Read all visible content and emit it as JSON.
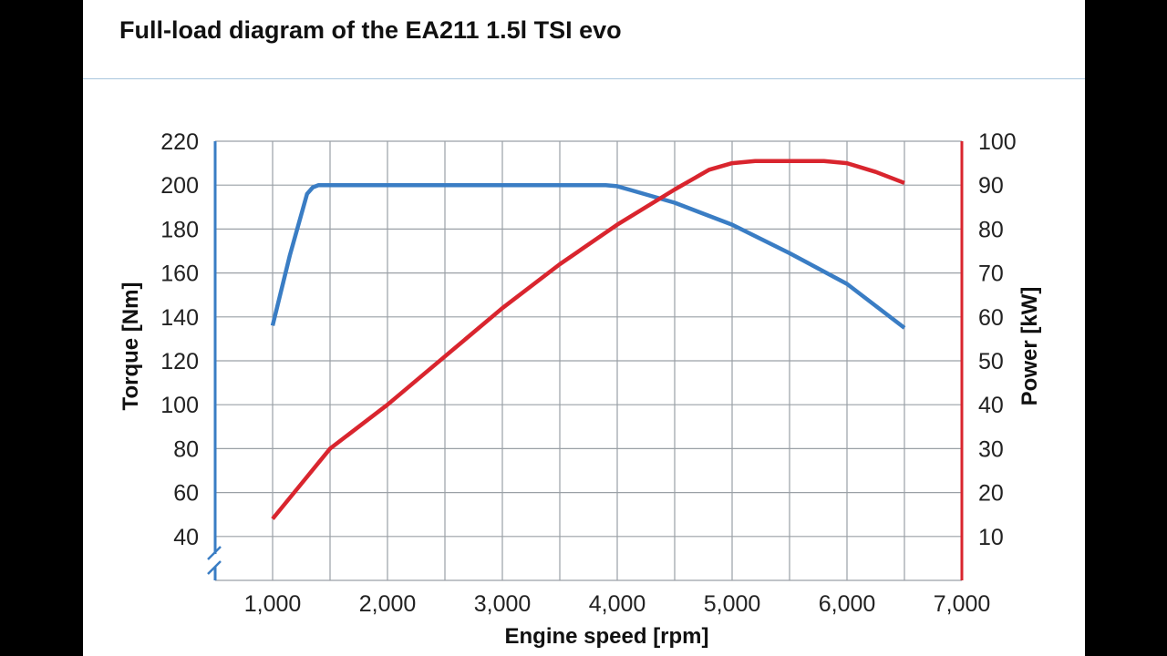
{
  "chart_data": {
    "type": "line",
    "title": "Full-load diagram of the EA211 1.5l TSI evo",
    "xlabel": "Engine speed [rpm]",
    "ylabel_left": "Torque [Nm]",
    "ylabel_right": "Power [kW]",
    "xlim": [
      500,
      7000
    ],
    "ylim_left": [
      20,
      220
    ],
    "ylim_right": [
      0,
      100
    ],
    "x_ticks": [
      1000,
      2000,
      3000,
      4000,
      5000,
      6000,
      7000
    ],
    "x_tick_labels": [
      "1,000",
      "2,000",
      "3,000",
      "4,000",
      "5,000",
      "6,000",
      "7,000"
    ],
    "y_left_ticks": [
      40,
      60,
      80,
      100,
      120,
      140,
      160,
      180,
      200,
      220
    ],
    "y_left_tick_labels": [
      "40",
      "60",
      "80",
      "100",
      "120",
      "140",
      "160",
      "180",
      "200",
      "220"
    ],
    "y_right_ticks": [
      10,
      20,
      30,
      40,
      50,
      60,
      70,
      80,
      90,
      100
    ],
    "y_right_tick_labels": [
      "10",
      "20",
      "30",
      "40",
      "50",
      "60",
      "70",
      "80",
      "90",
      "100"
    ],
    "left_axis_break": true,
    "grid": true,
    "series": [
      {
        "name": "Torque [Nm]",
        "axis": "left",
        "color": "#3a7dc4",
        "x": [
          1000,
          1150,
          1300,
          1350,
          1400,
          1500,
          2000,
          3000,
          3900,
          4000,
          4100,
          4500,
          5000,
          5500,
          6000,
          6500
        ],
        "y": [
          136,
          168,
          196,
          199,
          200,
          200,
          200,
          200,
          200,
          199.5,
          198,
          192,
          182,
          169,
          155,
          135
        ]
      },
      {
        "name": "Power [kW]",
        "axis": "right",
        "color": "#d9252e",
        "x": [
          1000,
          1250,
          1500,
          2000,
          2500,
          3000,
          3500,
          4000,
          4500,
          4800,
          5000,
          5200,
          5500,
          5800,
          6000,
          6250,
          6500
        ],
        "y": [
          14,
          22,
          30,
          40,
          51,
          62,
          72,
          81,
          89,
          93.5,
          95,
          95.5,
          95.5,
          95.5,
          95,
          93,
          90.5
        ]
      }
    ]
  },
  "colors": {
    "grid": "#9aa0a6",
    "torque_axis": "#3a7dc4",
    "power_axis": "#d9252e",
    "title_rule": "#a9c6dd"
  }
}
